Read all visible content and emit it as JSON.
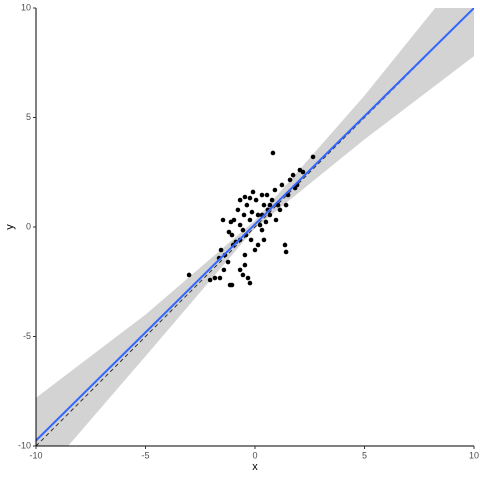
{
  "chart_data": {
    "type": "scatter",
    "x_label": "x",
    "y_label": "y",
    "xlim": [
      -10,
      10
    ],
    "ylim": [
      -10,
      10
    ],
    "xticks": [
      -10,
      -5,
      0,
      5,
      10
    ],
    "yticks": [
      -10,
      -5,
      0,
      5,
      10
    ],
    "grid": false,
    "point_color": "#000000",
    "x": [
      -3.01,
      -2.05,
      -1.83,
      -1.6,
      -1.42,
      -1.14,
      -1.05,
      -1.55,
      -1.64,
      -1.37,
      -1.23,
      -1.0,
      -0.87,
      -0.68,
      -1.05,
      -1.19,
      -1.46,
      -1.1,
      -0.96,
      -0.68,
      -0.78,
      -0.68,
      -0.46,
      -0.37,
      -0.5,
      -0.55,
      -0.41,
      -0.23,
      -0.14,
      -0.09,
      0.05,
      0.14,
      0.23,
      0.32,
      0.41,
      0.5,
      0.59,
      0.68,
      0.78,
      0.82,
      0.91,
      0.96,
      1.14,
      1.23,
      1.37,
      1.42,
      1.51,
      1.6,
      1.74,
      1.92,
      2.05,
      2.19,
      2.65,
      -0.46,
      -0.55,
      -0.32,
      -0.23,
      -0.68,
      -0.46,
      0,
      0.14,
      -0.18,
      0.32,
      0.41,
      -0.23,
      0.32,
      0.55,
      1.05,
      0.68,
      1.42,
      1.83
    ],
    "y": [
      -2.19,
      -2.42,
      -2.33,
      -2.33,
      -1.96,
      -2.65,
      -2.65,
      -1.05,
      -1.42,
      -1.28,
      -1.6,
      -0.82,
      -0.68,
      -0.59,
      -0.37,
      -0.23,
      0.32,
      0.23,
      0.32,
      0.09,
      0.78,
      1.23,
      1.37,
      1.0,
      0.55,
      -0.14,
      -0.37,
      0.32,
      0.68,
      1.6,
      1.23,
      0.55,
      0.09,
      -0.14,
      -0.59,
      0.23,
      0.78,
      1.0,
      1.23,
      3.38,
      1.69,
      0.32,
      0.78,
      1.92,
      -0.82,
      -1.14,
      1.46,
      2.15,
      2.37,
      1.92,
      2.6,
      2.51,
      3.2,
      -1.74,
      -2.19,
      -2.33,
      -2.56,
      -1.96,
      -1.28,
      -1.05,
      -0.82,
      -0.59,
      0.55,
      1.0,
      1.32,
      1.46,
      1.46,
      1.0,
      0.55,
      1.0,
      1.78
    ],
    "fit": {
      "color": "#3366ff",
      "x": [
        -10,
        10
      ],
      "y": [
        -9.75,
        10
      ]
    },
    "band": {
      "color": "#d3d3d3",
      "x": [
        -10,
        -5,
        0,
        5,
        10
      ],
      "lower": [
        -11.7,
        -5.9,
        -0.05,
        4.0,
        7.8
      ],
      "upper": [
        -7.8,
        -4.0,
        0.3,
        6.0,
        12.2
      ]
    },
    "reference_line": {
      "color": "#333333",
      "x": [
        -10,
        10
      ],
      "y": [
        -10,
        10
      ]
    }
  }
}
